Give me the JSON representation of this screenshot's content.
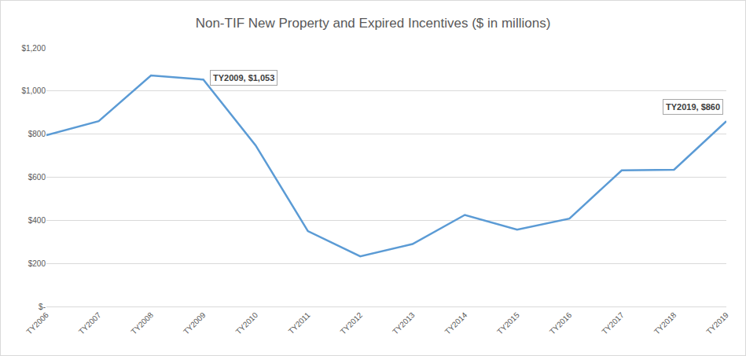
{
  "chart_data": {
    "type": "line",
    "title": "Non-TIF New Property and Expired Incentives ($ in millions)",
    "categories": [
      "TY2006",
      "TY2007",
      "TY2008",
      "TY2009",
      "TY2010",
      "TY2011",
      "TY2012",
      "TY2013",
      "TY2014",
      "TY2015",
      "TY2016",
      "TY2017",
      "TY2018",
      "TY2019"
    ],
    "values": [
      795,
      860,
      1072,
      1053,
      748,
      350,
      233,
      290,
      425,
      357,
      408,
      632,
      635,
      860
    ],
    "color": "#5b9bd5",
    "ylim": [
      0,
      1200
    ],
    "yticks": [
      {
        "value": 0,
        "label": "$-"
      },
      {
        "value": 200,
        "label": "$200"
      },
      {
        "value": 400,
        "label": "$400"
      },
      {
        "value": 600,
        "label": "$600"
      },
      {
        "value": 800,
        "label": "$800"
      },
      {
        "value": 1000,
        "label": "$1,000"
      },
      {
        "value": 1200,
        "label": "$1,200"
      }
    ],
    "grid": true,
    "annotations": [
      {
        "x": "TY2009",
        "y": 1053,
        "text": "TY2009, $1,053"
      },
      {
        "x": "TY2019",
        "y": 860,
        "text": "TY2019, $860"
      }
    ]
  }
}
